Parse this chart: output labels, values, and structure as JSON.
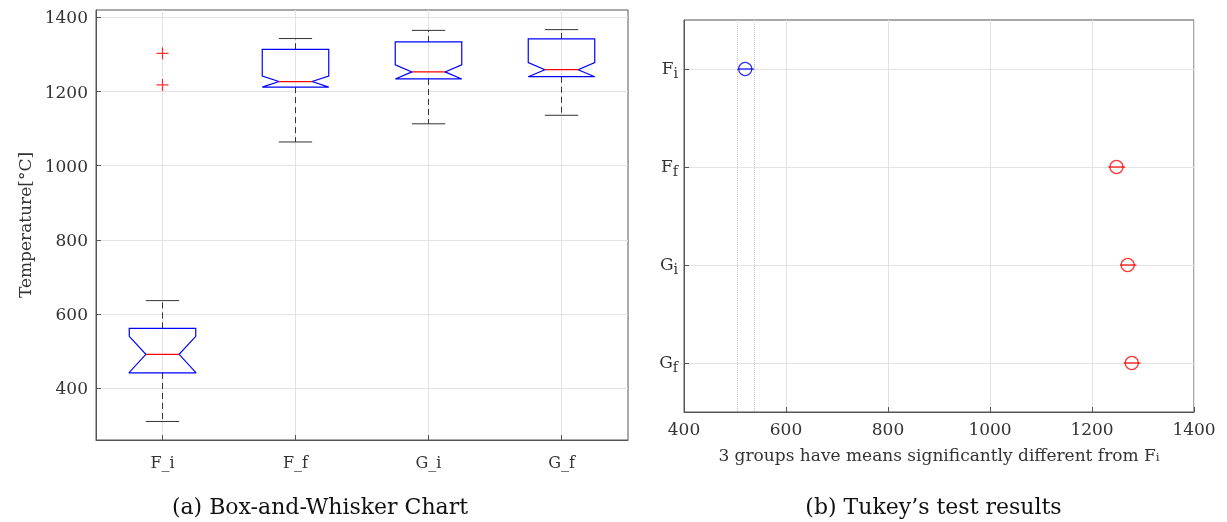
{
  "chart_data": [
    {
      "type": "box",
      "title": "(a) Box-and-Whisker Chart",
      "ylabel": "Temperature[°C]",
      "categories": [
        "F_i",
        "F_f",
        "G_i",
        "G_f"
      ],
      "ylim": [
        260,
        1420
      ],
      "yticks": [
        400,
        600,
        800,
        1000,
        1200,
        1400
      ],
      "grid": true,
      "series": [
        {
          "color": "#0000ff",
          "boxes": [
            {
              "low": 310,
              "q1": 441,
              "median": 491,
              "q3": 561,
              "high": 636,
              "outliers": [
                1218,
                1303
              ]
            },
            {
              "low": 1064,
              "q1": 1212,
              "median": 1227,
              "q3": 1314,
              "high": 1343
            },
            {
              "low": 1113,
              "q1": 1234,
              "median": 1253,
              "q3": 1334,
              "high": 1365
            },
            {
              "low": 1136,
              "q1": 1240,
              "median": 1259,
              "q3": 1342,
              "high": 1367
            }
          ]
        }
      ]
    },
    {
      "type": "scatter",
      "orientation": "horizontal",
      "title": "(b) Tukey’s test results",
      "xlabel": "3 groups have means significantly different from F$_{i}$",
      "categories": [
        "F$_{i}$",
        "F$_{f}$",
        "G$_{i}$",
        "G$_{f}$"
      ],
      "xlim": [
        400,
        1400
      ],
      "xticks": [
        400,
        600,
        800,
        1000,
        1200,
        1400
      ],
      "grid": true,
      "marker": "circle",
      "values": [
        520,
        1248,
        1270,
        1278
      ],
      "errors": [
        [
          504,
          537
        ],
        [
          1232,
          1265
        ],
        [
          1255,
          1287
        ],
        [
          1262,
          1295
        ]
      ],
      "colors": [
        "#0000ff",
        "#ff0000",
        "#ff0000",
        "#ff0000"
      ],
      "ref_lines": [
        {
          "axis": "x",
          "value": 504,
          "color": "#c8c8c8",
          "line_style": "dotted"
        },
        {
          "axis": "x",
          "value": 537,
          "color": "#c8c8c8",
          "line_style": "dotted"
        }
      ]
    }
  ]
}
